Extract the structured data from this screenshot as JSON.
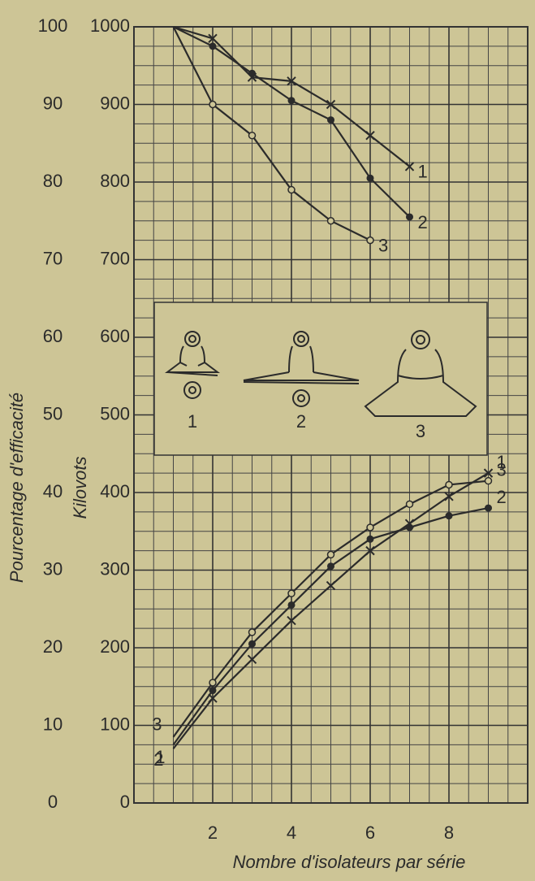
{
  "chart_data": {
    "type": "line",
    "x_label": "Nombre d'isolateurs par série",
    "y_label": "Kilovots",
    "y2_label": "Pourcentage d'efficacité",
    "x": [
      1,
      2,
      3,
      4,
      5,
      6,
      7,
      8,
      9
    ],
    "xlim": [
      0,
      10
    ],
    "xticks": [
      2,
      4,
      6,
      8
    ],
    "ylim": [
      0,
      1000
    ],
    "yticks": [
      0,
      100,
      200,
      300,
      400,
      500,
      600,
      700,
      800,
      900,
      1000
    ],
    "y2lim": [
      0,
      100
    ],
    "y2ticks": [
      0,
      10,
      20,
      30,
      40,
      50,
      60,
      70,
      80,
      90,
      100
    ],
    "grid": true,
    "series": [
      {
        "name": "1",
        "color": "#2b2b2b",
        "marker": "x",
        "axis": "y2",
        "values": [
          100,
          98.5,
          93.5,
          93,
          90,
          86,
          82,
          null,
          null
        ]
      },
      {
        "name": "2",
        "color": "#2b2b2b",
        "marker": "dot",
        "axis": "y2",
        "values": [
          100,
          97.5,
          94,
          90.5,
          88,
          80.5,
          75.5,
          null,
          null
        ]
      },
      {
        "name": "3",
        "color": "#2b2b2b",
        "marker": "circle",
        "axis": "y2",
        "values": [
          100,
          90,
          86,
          79,
          75,
          72.5,
          null,
          null,
          null
        ]
      },
      {
        "name": "1",
        "color": "#2b2b2b",
        "marker": "x",
        "values": [
          70,
          135,
          185,
          235,
          280,
          325,
          360,
          395,
          425
        ]
      },
      {
        "name": "2",
        "color": "#2b2b2b",
        "marker": "dot",
        "values": [
          75,
          145,
          205,
          255,
          305,
          340,
          355,
          370,
          380
        ]
      },
      {
        "name": "3",
        "color": "#2b2b2b",
        "marker": "circle",
        "values": [
          85,
          155,
          220,
          270,
          320,
          355,
          385,
          410,
          415
        ]
      }
    ]
  }
}
